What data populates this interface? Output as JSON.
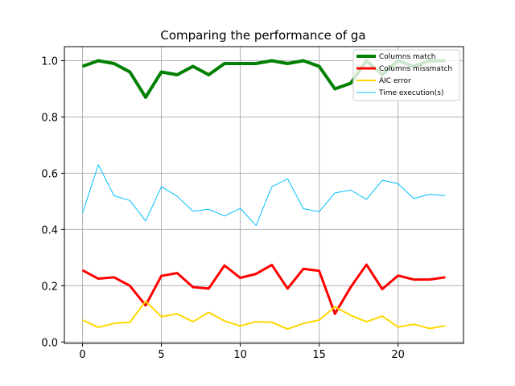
{
  "chart_data": {
    "type": "line",
    "title": "Comparing the performance of ga",
    "xlabel": "",
    "ylabel": "",
    "xlim": [
      -1.15,
      24.15
    ],
    "ylim": [
      -0.005,
      1.05
    ],
    "xticks": [
      0,
      5,
      10,
      15,
      20
    ],
    "yticks": [
      0.0,
      0.2,
      0.4,
      0.6,
      0.8,
      1.0
    ],
    "grid": true,
    "legend_position": "top-right",
    "x": [
      0,
      1,
      2,
      3,
      4,
      5,
      6,
      7,
      8,
      9,
      10,
      11,
      12,
      13,
      14,
      15,
      16,
      17,
      18,
      19,
      20,
      21,
      22,
      23
    ],
    "series": [
      {
        "name": "Columns match",
        "color": "#008000",
        "values": [
          0.98,
          1.0,
          0.99,
          0.96,
          0.87,
          0.96,
          0.95,
          0.98,
          0.95,
          0.99,
          0.99,
          0.99,
          1.0,
          0.99,
          1.0,
          0.98,
          0.9,
          0.92,
          1.0,
          0.95,
          1.0,
          0.98,
          1.0,
          1.0
        ]
      },
      {
        "name": "Columns missmatch",
        "color": "#ff0000",
        "values": [
          0.255,
          0.225,
          0.23,
          0.2,
          0.13,
          0.235,
          0.245,
          0.195,
          0.19,
          0.272,
          0.228,
          0.242,
          0.274,
          0.19,
          0.26,
          0.253,
          0.1,
          0.195,
          0.275,
          0.188,
          0.236,
          0.222,
          0.222,
          0.23
        ]
      },
      {
        "name": "AIC error",
        "color": "#ffd700",
        "values": [
          0.078,
          0.052,
          0.066,
          0.07,
          0.145,
          0.09,
          0.1,
          0.072,
          0.105,
          0.075,
          0.057,
          0.072,
          0.07,
          0.046,
          0.066,
          0.078,
          0.125,
          0.095,
          0.072,
          0.092,
          0.053,
          0.063,
          0.048,
          0.058
        ]
      },
      {
        "name": "Time execution(s)",
        "color": "#00bfff",
        "values": [
          0.458,
          0.63,
          0.52,
          0.503,
          0.43,
          0.552,
          0.518,
          0.465,
          0.472,
          0.448,
          0.475,
          0.414,
          0.552,
          0.58,
          0.474,
          0.463,
          0.53,
          0.54,
          0.507,
          0.575,
          0.563,
          0.51,
          0.525,
          0.52
        ]
      }
    ]
  }
}
